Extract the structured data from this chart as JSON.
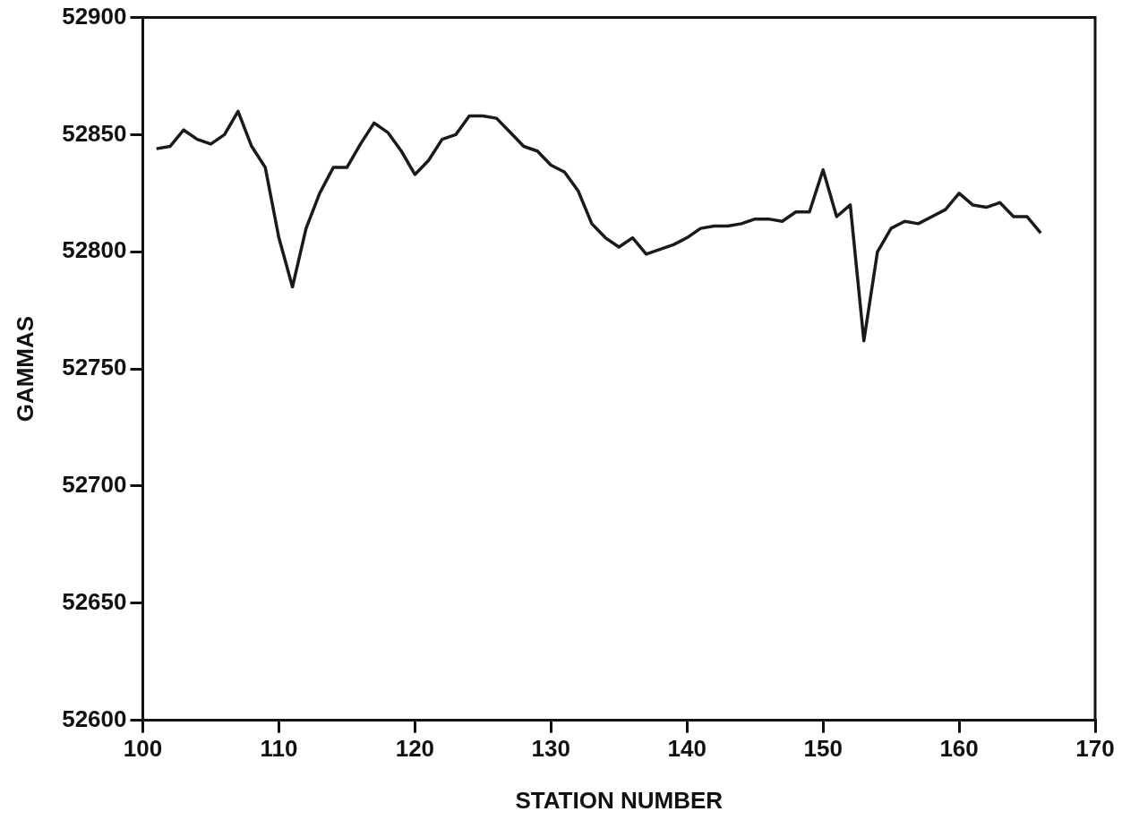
{
  "chart_data": {
    "type": "line",
    "xlabel": "STATION NUMBER",
    "ylabel": "GAMMAS",
    "x": [
      101,
      102,
      103,
      104,
      105,
      106,
      107,
      108,
      109,
      110,
      111,
      112,
      113,
      114,
      115,
      116,
      117,
      118,
      119,
      120,
      121,
      122,
      123,
      124,
      125,
      126,
      127,
      128,
      129,
      130,
      131,
      132,
      133,
      134,
      135,
      136,
      137,
      138,
      139,
      140,
      141,
      142,
      143,
      144,
      145,
      146,
      147,
      148,
      149,
      150,
      151,
      152,
      153,
      154,
      155,
      156,
      157,
      158,
      159,
      160,
      161,
      162,
      163,
      164,
      165,
      166
    ],
    "series": [
      {
        "color": "#1a1a1a",
        "values": [
          52844,
          52845,
          52852,
          52848,
          52846,
          52850,
          52860,
          52845,
          52836,
          52806,
          52785,
          52810,
          52825,
          52836,
          52836,
          52846,
          52855,
          52851,
          52843,
          52833,
          52839,
          52848,
          52850,
          52858,
          52858,
          52857,
          52851,
          52845,
          52843,
          52837,
          52834,
          52826,
          52812,
          52806,
          52802,
          52806,
          52799,
          52801,
          52803,
          52806,
          52810,
          52811,
          52811,
          52812,
          52814,
          52814,
          52813,
          52817,
          52817,
          52835,
          52815,
          52820,
          52762,
          52800,
          52810,
          52813,
          52812,
          52815,
          52818,
          52825,
          52820,
          52819,
          52821,
          52815,
          52815,
          52808
        ]
      }
    ],
    "xlim": [
      100,
      170
    ],
    "xticks": [
      100,
      110,
      120,
      130,
      140,
      150,
      160,
      170
    ],
    "ylim": [
      52600,
      52900
    ],
    "yticks": [
      52600,
      52650,
      52700,
      52750,
      52800,
      52850,
      52900
    ],
    "grid": false,
    "legend": false,
    "marker": "none",
    "line_style": "solid"
  }
}
